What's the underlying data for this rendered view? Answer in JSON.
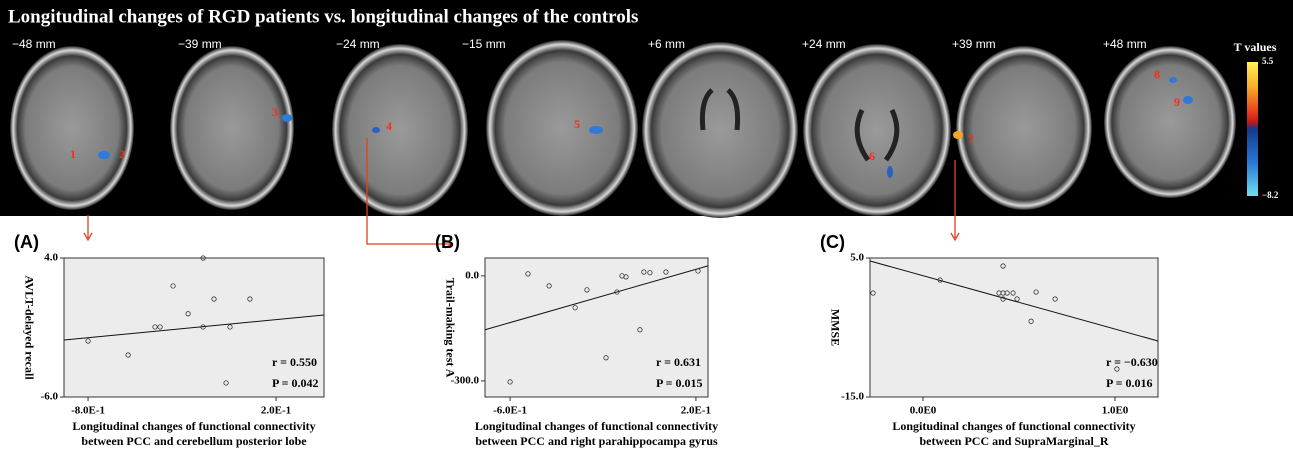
{
  "figure": {
    "title": "Longitudinal changes of RGD patients vs. longitudinal changes of the controls",
    "slices": [
      "−48 mm",
      "−39 mm",
      "−24 mm",
      "−15 mm",
      "+6 mm",
      "+24 mm",
      "+39 mm",
      "+48 mm"
    ],
    "colorbar": {
      "title": "T values",
      "max": 5.5,
      "min_label": "−8.2"
    },
    "regions": [
      "1",
      "2",
      "3",
      "4",
      "5",
      "6",
      "7",
      "8",
      "9"
    ]
  },
  "chart_data": [
    {
      "type": "scatter",
      "panel_label": "(A)",
      "ylabel": "AVLT-delayed recall",
      "xlabel": [
        "Longitudinal changes of functional connectivity",
        "between PCC and cerebellum posterior lobe"
      ],
      "stats": [
        "r = 0.550",
        "P = 0.042"
      ],
      "x": [
        -0.8,
        -0.587,
        -0.444,
        -0.417,
        -0.348,
        -0.268,
        -0.188,
        -0.188,
        -0.13,
        -0.045,
        0.061,
        -0.066
      ],
      "values": [
        -1.97,
        -2.98,
        -0.96,
        -0.96,
        1.99,
        -0.01,
        4.0,
        -0.96,
        1.05,
        -0.96,
        1.05,
        -4.99
      ],
      "fit": {
        "x": [
          -0.928,
          0.455
        ],
        "values": [
          -1.9,
          -0.1
        ]
      },
      "xlim": [
        -0.928,
        0.455
      ],
      "ylim": [
        -6,
        4
      ],
      "xticks": [
        {
          "value": -0.8,
          "label": "-8.0E-1"
        },
        {
          "value": 0.2,
          "label": "2.0E-1"
        }
      ],
      "yticks": [
        {
          "value": -6,
          "label": "-6.0"
        },
        {
          "value": 4,
          "label": "4.0"
        }
      ]
    },
    {
      "type": "scatter",
      "panel_label": "(B)",
      "ylabel": "Trail-making test A",
      "xlabel": [
        "Longitudinal changes of functional connectivity",
        "between PCC and right parahippocampa gyrus"
      ],
      "stats": [
        "r = 0.631",
        "P = 0.015"
      ],
      "x": [
        -0.6,
        -0.523,
        -0.432,
        -0.32,
        -0.269,
        -0.187,
        -0.14,
        -0.118,
        -0.101,
        -0.041,
        -0.024,
        0.002,
        0.071,
        0.209
      ],
      "values": [
        -302.9,
        5.7,
        -28.6,
        -91,
        -40,
        -234,
        -46,
        0,
        -3,
        -154,
        11,
        9,
        11,
        14
      ],
      "fit": {
        "x": [
          -0.708,
          0.252
        ],
        "values": [
          -154,
          28.6
        ]
      },
      "xlim": [
        -0.708,
        0.252
      ],
      "ylim": [
        -346,
        51
      ],
      "xticks": [
        {
          "value": -0.6,
          "label": "-6.0E-1"
        },
        {
          "value": 0.2,
          "label": "2.0E-1"
        }
      ],
      "yticks": [
        {
          "value": -300,
          "label": "-300.0"
        },
        {
          "value": 0,
          "label": "0.0"
        }
      ]
    },
    {
      "type": "scatter",
      "panel_label": "(C)",
      "ylabel": "MMSE",
      "xlabel": [
        "Longitudinal changes of functional connectivity",
        "between PCC and SupraMarginal_R"
      ],
      "stats": [
        "r = −0.630",
        "P = 0.016"
      ],
      "x": [
        -0.26,
        0.089,
        0.417,
        0.396,
        0.417,
        0.438,
        0.469,
        0.417,
        0.49,
        0.589,
        0.563,
        0.688,
        1.01
      ],
      "values": [
        -0.04,
        1.83,
        3.85,
        -0.04,
        -0.04,
        -0.04,
        -0.04,
        -0.9,
        -0.9,
        0.1,
        -4.1,
        -0.9,
        -10.97
      ],
      "fit": {
        "x": [
          -0.276,
          1.224
        ],
        "values": [
          4.57,
          -6.94
        ]
      },
      "xlim": [
        -0.276,
        1.224
      ],
      "ylim": [
        -15,
        5
      ],
      "xticks": [
        {
          "value": 0,
          "label": "0.0E0"
        },
        {
          "value": 1,
          "label": "1.0E0"
        }
      ],
      "yticks": [
        {
          "value": -15,
          "label": "-15.0"
        },
        {
          "value": 5,
          "label": "5.0"
        }
      ]
    }
  ]
}
